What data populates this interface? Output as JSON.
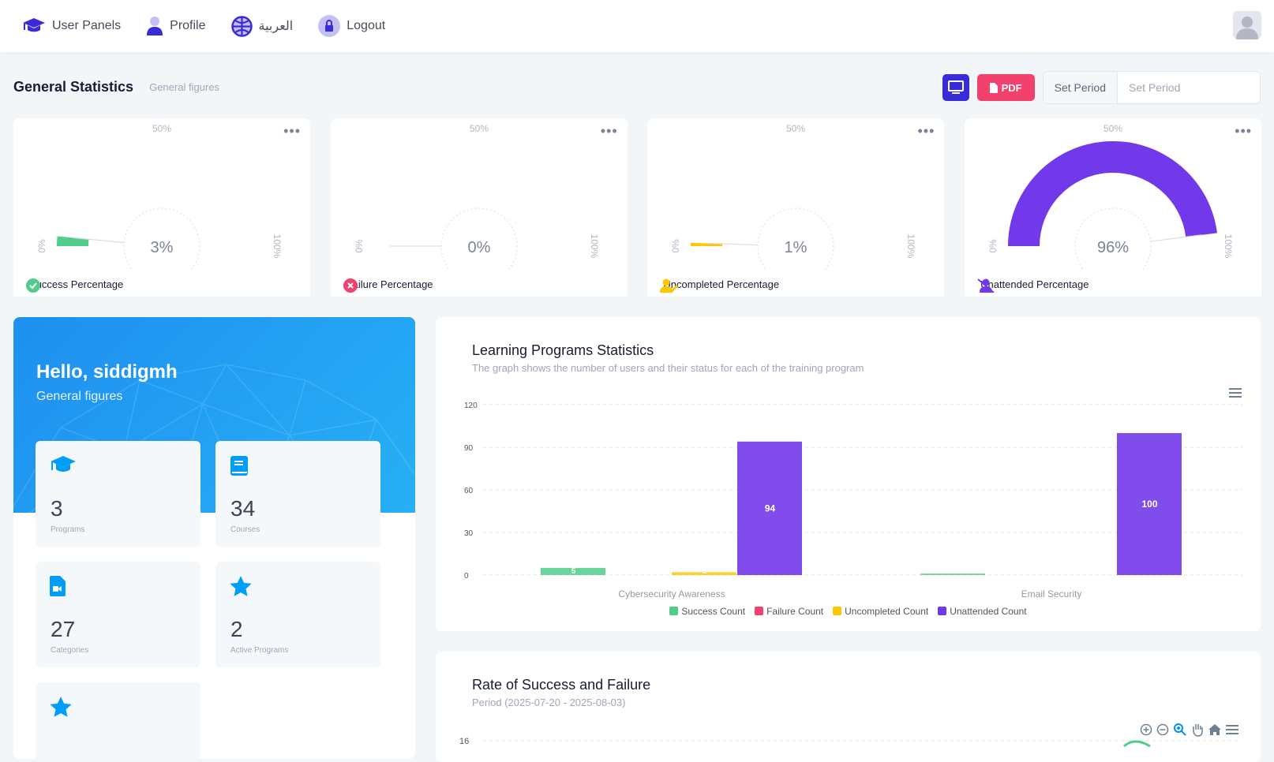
{
  "nav": {
    "items": [
      {
        "label": "User Panels",
        "icon": "graduation-cap-icon"
      },
      {
        "label": "Profile",
        "icon": "user-icon"
      },
      {
        "label": "العربية",
        "icon": "globe-icon"
      },
      {
        "label": "Logout",
        "icon": "lock-icon"
      }
    ]
  },
  "subheader": {
    "title": "General Statistics",
    "description": "General figures",
    "pdf_label": "PDF",
    "period_label": "Set Period",
    "period_placeholder": "Set Period",
    "period_value": ""
  },
  "colors": {
    "success": "#50cd89",
    "failure": "#f1416c",
    "uncompleted": "#ffc700",
    "unattended": "#7239ea",
    "primary": "#3a2bd8"
  },
  "gauges": [
    {
      "label": "Success Percentage",
      "value": 3,
      "display": "3%",
      "color": "#50cd89",
      "icon": "check-circle-icon"
    },
    {
      "label": "Failure Percentage",
      "value": 0,
      "display": "0%",
      "color": "#f1416c",
      "icon": "x-circle-icon"
    },
    {
      "label": "Uncompleted Percentage",
      "value": 1,
      "display": "1%",
      "color": "#ffc700",
      "icon": "user-edit-icon"
    },
    {
      "label": "Unattended Percentage",
      "value": 96,
      "display": "96%",
      "color": "#7239ea",
      "icon": "user-slash-icon"
    }
  ],
  "gauge_ticks": {
    "min": "0%",
    "mid": "50%",
    "max": "100%"
  },
  "welcome": {
    "greeting": "Hello, siddigmh",
    "subtitle": "General figures",
    "tiles": [
      {
        "value": "3",
        "caption": "Programs"
      },
      {
        "value": "34",
        "caption": "Courses"
      },
      {
        "value": "27",
        "caption": "Categories"
      },
      {
        "value": "2",
        "caption": "Active Programs"
      },
      {
        "value": "",
        "caption": ""
      }
    ]
  },
  "chart_data": [
    {
      "type": "bar",
      "title": "Learning Programs Statistics",
      "subtitle": "The graph shows the number of users and their status for each of the training program",
      "categories": [
        "Cybersecurity Awareness",
        "Email Security"
      ],
      "series": [
        {
          "name": "Success Count",
          "values": [
            5,
            1
          ],
          "color": "#50cd89"
        },
        {
          "name": "Failure Count",
          "values": [
            0,
            0
          ],
          "color": "#f1416c"
        },
        {
          "name": "Uncompleted Count",
          "values": [
            2,
            0
          ],
          "color": "#ffc700"
        },
        {
          "name": "Unattended Count",
          "values": [
            94,
            100
          ],
          "color": "#7239ea"
        }
      ],
      "ylim": [
        0,
        120
      ],
      "yticks": [
        "0",
        "30",
        "60",
        "90",
        "120"
      ],
      "grid": true,
      "legend": "bottom"
    },
    {
      "type": "line",
      "title": "Rate of Success and Failure",
      "subtitle": "Period (2025-07-20 - 2025-08-03)",
      "yticks": [
        "16"
      ]
    }
  ]
}
